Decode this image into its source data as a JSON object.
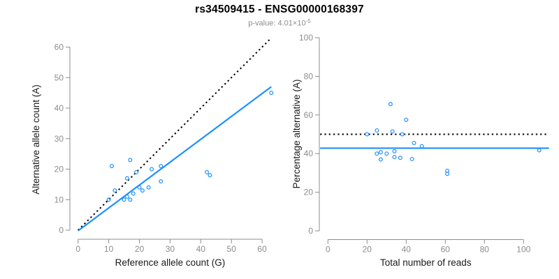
{
  "header": {
    "title": "rs34509415 - ENSG00000168397",
    "p_label": "p-value: ",
    "p_mantissa": "4.01",
    "p_times": "×10",
    "p_exponent": "-5"
  },
  "colors": {
    "accent_blue": "#1E90FF",
    "dotted_black": "#000000",
    "axis_gray": "#8C8C8C",
    "tick_label_gray": "#8C8C8C",
    "axis_title_dark": "#1A1A1A",
    "subtitle_gray": "#8C8C8C"
  },
  "chart_data": [
    {
      "name": "allele-counts",
      "type": "scatter",
      "xlabel": "Reference allele count (G)",
      "ylabel": "Alternative allele count (A)",
      "xlim": [
        -2.5,
        65.5
      ],
      "ylim": [
        -2.5,
        65.5
      ],
      "xticks": [
        0,
        10,
        20,
        30,
        40,
        50,
        60
      ],
      "yticks": [
        0,
        10,
        20,
        30,
        40,
        50,
        60
      ],
      "grid": false,
      "legend": "none",
      "points": [
        [
          11,
          21
        ],
        [
          17,
          23
        ],
        [
          19,
          19
        ],
        [
          16,
          17
        ],
        [
          24,
          20
        ],
        [
          27,
          21
        ],
        [
          27,
          16
        ],
        [
          12,
          13
        ],
        [
          20,
          14
        ],
        [
          21,
          13
        ],
        [
          23,
          14
        ],
        [
          18,
          12
        ],
        [
          10,
          10
        ],
        [
          15,
          10
        ],
        [
          16,
          11
        ],
        [
          17,
          10
        ],
        [
          42,
          19
        ],
        [
          43,
          18
        ],
        [
          63,
          45
        ]
      ],
      "lines": [
        {
          "name": "identity-line",
          "style": "dotted",
          "color": "#000000",
          "x1": 0,
          "y1": 0,
          "x2": 63,
          "y2": 63
        },
        {
          "name": "fit-line",
          "style": "solid",
          "color": "#1E90FF",
          "x1": 0,
          "y1": -0.2,
          "x2": 63,
          "y2": 47
        }
      ]
    },
    {
      "name": "percentage-vs-reads",
      "type": "scatter",
      "xlabel": "Total number of reads",
      "ylabel": "Percentage alternative (A)",
      "xlim": [
        -4,
        113
      ],
      "ylim": [
        -4,
        104
      ],
      "xticks": [
        0,
        20,
        40,
        60,
        80,
        100
      ],
      "yticks": [
        0,
        20,
        40,
        60,
        80,
        100
      ],
      "grid": false,
      "legend": "none",
      "points": [
        [
          32,
          65.6
        ],
        [
          40,
          57.5
        ],
        [
          38,
          50
        ],
        [
          33,
          51.5
        ],
        [
          44,
          45.5
        ],
        [
          48,
          43.8
        ],
        [
          43,
          37.2
        ],
        [
          25,
          52
        ],
        [
          34,
          41.2
        ],
        [
          34,
          38.2
        ],
        [
          37,
          37.8
        ],
        [
          30,
          40
        ],
        [
          20,
          50
        ],
        [
          25,
          40
        ],
        [
          27,
          40.7
        ],
        [
          27,
          37
        ],
        [
          61,
          31.1
        ],
        [
          61,
          29.5
        ],
        [
          108,
          41.7
        ]
      ],
      "lines": [
        {
          "name": "reference-50pct-line",
          "style": "dotted",
          "color": "#000000",
          "y": 50
        },
        {
          "name": "mean-percentage-line",
          "style": "solid",
          "color": "#1E90FF",
          "y": 42.8
        }
      ]
    }
  ]
}
